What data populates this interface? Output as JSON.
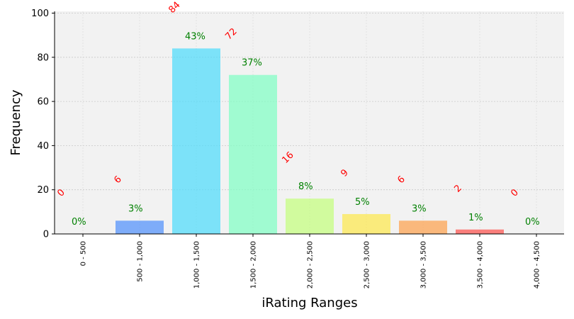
{
  "chart_data": {
    "type": "bar",
    "categories": [
      "0 - 500",
      "500 - 1,000",
      "1,000 - 1,500",
      "1,500 - 2,000",
      "2,000 - 2,500",
      "2,500 - 3,000",
      "3,000 - 3,500",
      "3,500 - 4,000",
      "4,000 - 4,500"
    ],
    "values": [
      0,
      6,
      84,
      72,
      16,
      9,
      6,
      2,
      0
    ],
    "count_labels": [
      "0",
      "6",
      "84",
      "72",
      "16",
      "9",
      "6",
      "2",
      "0"
    ],
    "percent_labels": [
      "0%",
      "3%",
      "43%",
      "37%",
      "8%",
      "5%",
      "3%",
      "1%",
      "0%"
    ],
    "colors": [
      "#2a00ff",
      "#4d8efc",
      "#4adcfc",
      "#7dffc3",
      "#c3ff7a",
      "#fde84a",
      "#fda04a",
      "#fd4f4a",
      "#e80000"
    ],
    "xlabel": "iRating Ranges",
    "ylabel": "Frequency",
    "ylim": [
      0,
      100
    ],
    "yticks": [
      "0",
      "20",
      "40",
      "60",
      "80",
      "100"
    ],
    "grid": true,
    "background": "#f2f2f2"
  }
}
